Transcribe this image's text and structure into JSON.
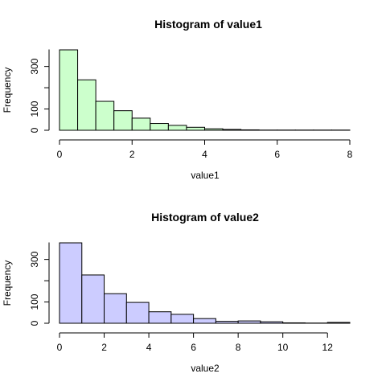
{
  "chart_data": [
    {
      "type": "bar",
      "title": "Histogram of value1",
      "xlabel": "value1",
      "ylabel": "Frequency",
      "fill_color": "#ccffcc",
      "border_color": "#000000",
      "bin_width": 0.5,
      "bins": [
        {
          "x0": 0.0,
          "x1": 0.5,
          "count": 378
        },
        {
          "x0": 0.5,
          "x1": 1.0,
          "count": 237
        },
        {
          "x0": 1.0,
          "x1": 1.5,
          "count": 136
        },
        {
          "x0": 1.5,
          "x1": 2.0,
          "count": 92
        },
        {
          "x0": 2.0,
          "x1": 2.5,
          "count": 57
        },
        {
          "x0": 2.5,
          "x1": 3.0,
          "count": 32
        },
        {
          "x0": 3.0,
          "x1": 3.5,
          "count": 23
        },
        {
          "x0": 3.5,
          "x1": 4.0,
          "count": 14
        },
        {
          "x0": 4.0,
          "x1": 4.5,
          "count": 7
        },
        {
          "x0": 4.5,
          "x1": 5.0,
          "count": 4
        },
        {
          "x0": 5.0,
          "x1": 5.5,
          "count": 2
        },
        {
          "x0": 5.5,
          "x1": 6.0,
          "count": 1
        },
        {
          "x0": 6.0,
          "x1": 6.5,
          "count": 1
        },
        {
          "x0": 6.5,
          "x1": 7.0,
          "count": 1
        },
        {
          "x0": 7.0,
          "x1": 7.5,
          "count": 1
        },
        {
          "x0": 7.5,
          "x1": 8.0,
          "count": 1
        }
      ],
      "xlim": [
        0,
        8
      ],
      "ylim": [
        0,
        378
      ],
      "x_ticks": [
        "0",
        "2",
        "4",
        "6",
        "8"
      ],
      "y_ticks": [
        "0",
        "100",
        "300"
      ],
      "y_axis_max": 380,
      "grid": false,
      "legend": "none"
    },
    {
      "type": "bar",
      "title": "Histogram of value2",
      "xlabel": "value2",
      "ylabel": "Frequency",
      "fill_color": "#ccccff",
      "border_color": "#000000",
      "bin_width": 1,
      "bins": [
        {
          "x0": 0,
          "x1": 1,
          "count": 378
        },
        {
          "x0": 1,
          "x1": 2,
          "count": 227
        },
        {
          "x0": 2,
          "x1": 3,
          "count": 139
        },
        {
          "x0": 3,
          "x1": 4,
          "count": 98
        },
        {
          "x0": 4,
          "x1": 5,
          "count": 54
        },
        {
          "x0": 5,
          "x1": 6,
          "count": 42
        },
        {
          "x0": 6,
          "x1": 7,
          "count": 22
        },
        {
          "x0": 7,
          "x1": 8,
          "count": 9
        },
        {
          "x0": 8,
          "x1": 9,
          "count": 11
        },
        {
          "x0": 9,
          "x1": 10,
          "count": 7
        },
        {
          "x0": 10,
          "x1": 11,
          "count": 2
        },
        {
          "x0": 11,
          "x1": 12,
          "count": 1
        },
        {
          "x0": 12,
          "x1": 13,
          "count": 4
        }
      ],
      "xlim": [
        0,
        13
      ],
      "ylim": [
        0,
        378
      ],
      "x_ticks": [
        "0",
        "2",
        "4",
        "6",
        "8",
        "10",
        "12"
      ],
      "y_ticks": [
        "0",
        "100",
        "300"
      ],
      "y_axis_max": 380,
      "grid": false,
      "legend": "none"
    }
  ]
}
